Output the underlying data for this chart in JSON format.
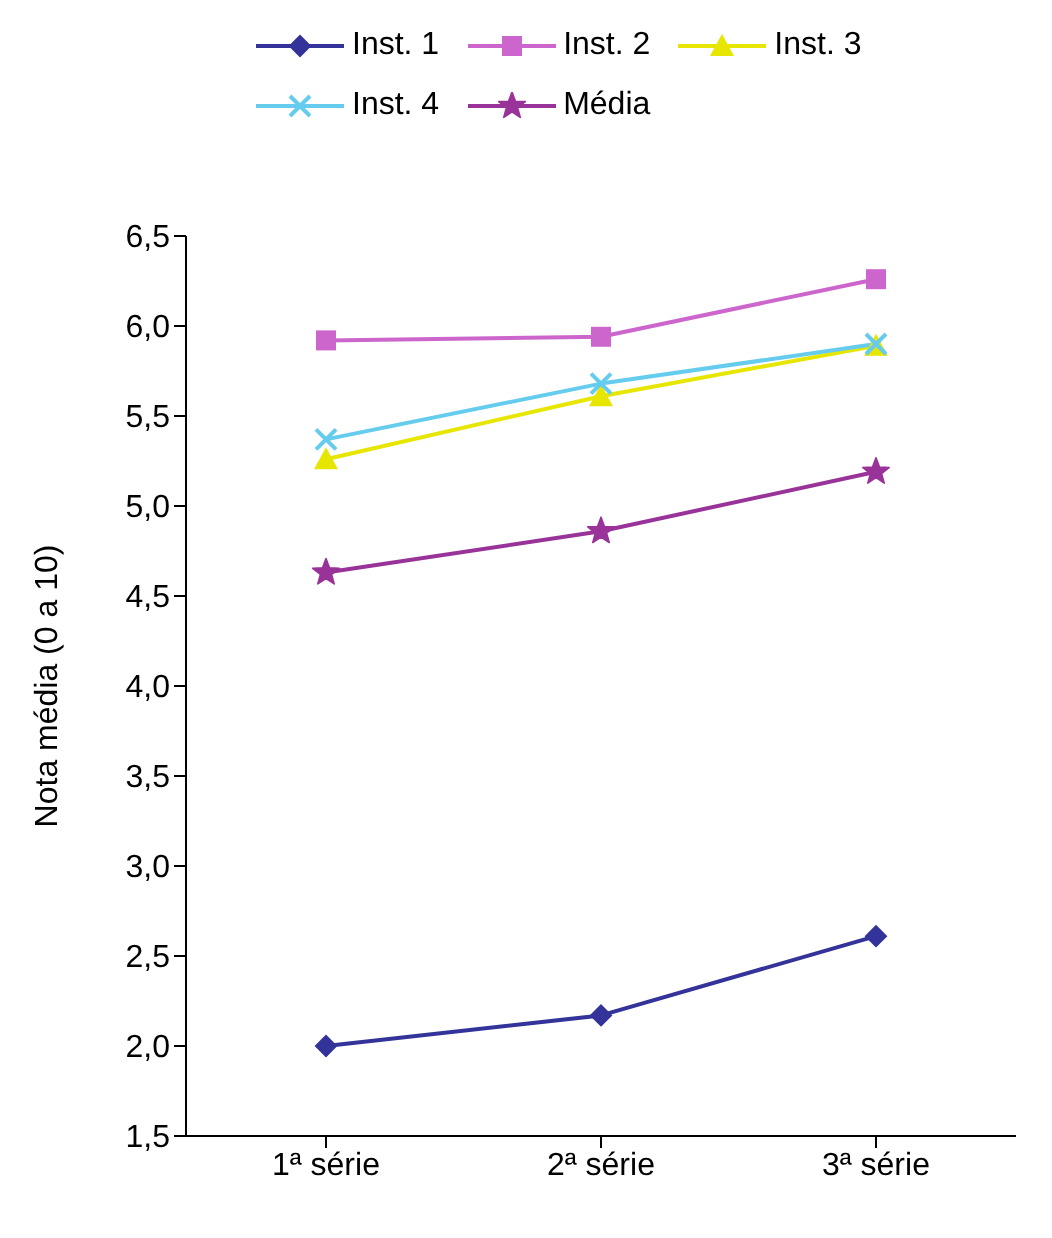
{
  "chart_data": {
    "type": "line",
    "ylabel": "Nota média (0 a 10)",
    "categories": [
      "1ª série",
      "2ª série",
      "3ª série"
    ],
    "series": [
      {
        "name": "Inst. 1",
        "color": "#333399",
        "marker": "diamond",
        "values": [
          2.0,
          2.17,
          2.61
        ]
      },
      {
        "name": "Inst. 2",
        "color": "#cc66cc",
        "marker": "square",
        "values": [
          5.92,
          5.94,
          6.26
        ]
      },
      {
        "name": "Inst. 3",
        "color": "#e6e600",
        "marker": "triangle",
        "values": [
          5.26,
          5.61,
          5.89
        ]
      },
      {
        "name": "Inst. 4",
        "color": "#66ccee",
        "marker": "cross",
        "values": [
          5.37,
          5.68,
          5.9
        ]
      },
      {
        "name": "Média",
        "color": "#993399",
        "marker": "star",
        "values": [
          4.63,
          4.86,
          5.19
        ]
      }
    ],
    "ylim": [
      1.5,
      6.5
    ],
    "yticks": [
      {
        "value": 1.5,
        "label": "1,5"
      },
      {
        "value": 2,
        "label": "2,0"
      },
      {
        "value": 2.5,
        "label": "2,5"
      },
      {
        "value": 3,
        "label": "3,0"
      },
      {
        "value": 3.5,
        "label": "3,5"
      },
      {
        "value": 4,
        "label": "4,0"
      },
      {
        "value": 4.5,
        "label": "4,5"
      },
      {
        "value": 5,
        "label": "5,0"
      },
      {
        "value": 5.5,
        "label": "5,5"
      },
      {
        "value": 6,
        "label": "6,0"
      },
      {
        "value": 6.5,
        "label": "6,5"
      }
    ],
    "grid": false,
    "legend": "top"
  }
}
